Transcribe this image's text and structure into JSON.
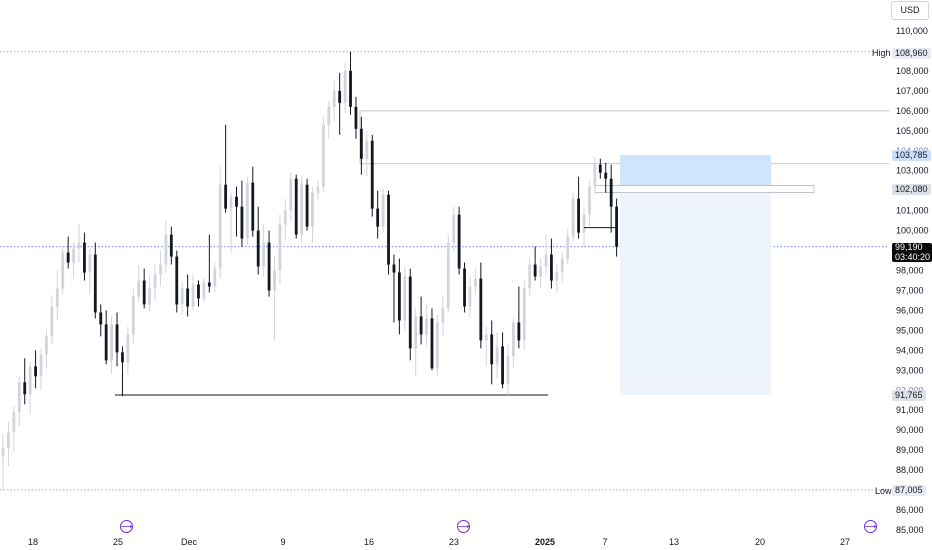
{
  "currency": "USD",
  "chart_data": {
    "type": "candlestick",
    "symbol_currency": "USD",
    "y_axis": {
      "ticks": [
        85000,
        86000,
        87000,
        88000,
        89000,
        90000,
        91000,
        92000,
        93000,
        94000,
        95000,
        96000,
        97000,
        98000,
        99000,
        100000,
        101000,
        102000,
        103000,
        104000,
        105000,
        106000,
        107000,
        108000,
        109000,
        110000
      ],
      "tick_labels": [
        "85,000",
        "86,000",
        "87,000",
        "88,000",
        "89,000",
        "90,000",
        "91,000",
        "92,000",
        "93,000",
        "94,000",
        "95,000",
        "96,000",
        "97,000",
        "98,000",
        "99,000",
        "100,000",
        "101,000",
        "102,000",
        "103,000",
        "104,000",
        "105,000",
        "106,000",
        "107,000",
        "108,000",
        "109,000",
        "110,000"
      ],
      "range": [
        85000,
        110000
      ]
    },
    "x_axis": {
      "tick_labels": [
        "18",
        "25",
        "Dec",
        "9",
        "16",
        "23",
        "2025",
        "7",
        "13",
        "20",
        "27"
      ],
      "bold_labels": [
        "2025"
      ]
    },
    "high": {
      "label": "High",
      "value": 108960,
      "display": "108,960"
    },
    "low": {
      "label": "Low",
      "value": 87005,
      "display": "87,005"
    },
    "current_price": {
      "value": 99190,
      "display": "99,190",
      "countdown": "03:40:20"
    },
    "price_tags": [
      {
        "value": 103785,
        "display": "103,785",
        "style": "blue"
      },
      {
        "value": 102080,
        "display": "102,080",
        "style": "gray"
      },
      {
        "value": 91765,
        "display": "91,765",
        "style": "gray"
      }
    ],
    "horizontal_levels": [
      {
        "name": "support",
        "value": 91765
      },
      {
        "name": "resistance-upper",
        "value": 106000
      },
      {
        "name": "resistance-lower",
        "value": 103350
      }
    ],
    "position_tool": {
      "entry": 102080,
      "target": 103785,
      "stop": 91765,
      "profit_color": "#cfe5fb",
      "loss_color": "#eef4fc"
    },
    "candles": [
      [
        88700,
        89800,
        87005,
        89100
      ],
      [
        89100,
        90400,
        88200,
        89900
      ],
      [
        89900,
        91200,
        88900,
        90900
      ],
      [
        90900,
        92700,
        90200,
        92400
      ],
      [
        92400,
        93600,
        91300,
        91800
      ],
      [
        91800,
        93400,
        90800,
        93200
      ],
      [
        93200,
        94000,
        92100,
        92700
      ],
      [
        92700,
        94100,
        92000,
        93800
      ],
      [
        93800,
        95000,
        93100,
        94700
      ],
      [
        94700,
        96700,
        94300,
        96200
      ],
      [
        96200,
        98000,
        95500,
        97100
      ],
      [
        97100,
        99200,
        96800,
        98900
      ],
      [
        98900,
        99700,
        98100,
        98400
      ],
      [
        98400,
        99400,
        97600,
        99100
      ],
      [
        99100,
        100300,
        98400,
        99400
      ],
      [
        99400,
        99900,
        97500,
        97900
      ],
      [
        97900,
        99100,
        96800,
        98800
      ],
      [
        98800,
        99400,
        95600,
        95900
      ],
      [
        95900,
        96300,
        94700,
        95300
      ],
      [
        95300,
        96000,
        93300,
        93500
      ],
      [
        93500,
        95700,
        92800,
        95300
      ],
      [
        95300,
        95900,
        93200,
        93900
      ],
      [
        93900,
        94200,
        91700,
        93400
      ],
      [
        93400,
        95200,
        92800,
        94800
      ],
      [
        94800,
        97100,
        94300,
        96700
      ],
      [
        96700,
        98300,
        96400,
        97500
      ],
      [
        97500,
        98100,
        96100,
        96300
      ],
      [
        96300,
        97700,
        95900,
        97100
      ],
      [
        97100,
        98300,
        96500,
        97800
      ],
      [
        97800,
        99000,
        97200,
        98300
      ],
      [
        98300,
        100500,
        97900,
        99800
      ],
      [
        99800,
        100200,
        98300,
        98700
      ],
      [
        98700,
        99000,
        95900,
        96300
      ],
      [
        96300,
        97400,
        95800,
        97100
      ],
      [
        97100,
        97800,
        95700,
        96200
      ],
      [
        96200,
        97800,
        96000,
        97300
      ],
      [
        97300,
        97500,
        96200,
        96600
      ],
      [
        96600,
        97600,
        96400,
        97400
      ],
      [
        97400,
        99800,
        96900,
        97200
      ],
      [
        97200,
        98400,
        96900,
        98100
      ],
      [
        98100,
        103200,
        97600,
        102300
      ],
      [
        102300,
        105300,
        100900,
        101100
      ],
      [
        101100,
        101900,
        98900,
        101700
      ],
      [
        101700,
        102200,
        99700,
        101200
      ],
      [
        101200,
        102500,
        99200,
        99600
      ],
      [
        99600,
        102700,
        99300,
        102400
      ],
      [
        102400,
        103200,
        99700,
        100000
      ],
      [
        100000,
        101200,
        97800,
        98200
      ],
      [
        98200,
        100300,
        97700,
        99400
      ],
      [
        99400,
        100000,
        96700,
        97000
      ],
      [
        97000,
        98700,
        94500,
        98000
      ],
      [
        98000,
        100800,
        97300,
        100300
      ],
      [
        100300,
        101600,
        99500,
        101000
      ],
      [
        101000,
        102900,
        100500,
        102600
      ],
      [
        102600,
        102800,
        99600,
        99800
      ],
      [
        99800,
        102700,
        99400,
        102300
      ],
      [
        102300,
        102600,
        100000,
        100200
      ],
      [
        100200,
        102200,
        99400,
        101900
      ],
      [
        101900,
        102500,
        101500,
        102200
      ],
      [
        102200,
        105700,
        101900,
        105300
      ],
      [
        105300,
        106500,
        104600,
        106200
      ],
      [
        106200,
        107500,
        105500,
        107000
      ],
      [
        107000,
        107900,
        104800,
        106400
      ],
      [
        106400,
        108400,
        105900,
        108000
      ],
      [
        108000,
        108960,
        105800,
        106200
      ],
      [
        106200,
        106700,
        104600,
        105100
      ],
      [
        105100,
        105700,
        102800,
        103600
      ],
      [
        103600,
        105000,
        102700,
        104500
      ],
      [
        104500,
        104800,
        100700,
        101100
      ],
      [
        101100,
        102000,
        99600,
        100200
      ],
      [
        100200,
        102100,
        99900,
        101800
      ],
      [
        101800,
        102000,
        97800,
        98300
      ],
      [
        98300,
        98800,
        95400,
        97900
      ],
      [
        97900,
        98600,
        94800,
        95500
      ],
      [
        95500,
        98200,
        95000,
        97700
      ],
      [
        97700,
        98100,
        93500,
        94100
      ],
      [
        94100,
        96100,
        92700,
        95700
      ],
      [
        95700,
        96700,
        94300,
        94800
      ],
      [
        94800,
        96300,
        94200,
        95600
      ],
      [
        95600,
        96100,
        93000,
        93100
      ],
      [
        93100,
        95800,
        92700,
        95400
      ],
      [
        95400,
        96700,
        94700,
        96100
      ],
      [
        96100,
        99800,
        95900,
        99400
      ],
      [
        99400,
        101200,
        98900,
        100800
      ],
      [
        100800,
        101200,
        97800,
        98100
      ],
      [
        98100,
        98400,
        95900,
        96200
      ],
      [
        96200,
        97700,
        95700,
        97200
      ],
      [
        97200,
        98100,
        96800,
        97600
      ],
      [
        97600,
        98400,
        94100,
        94500
      ],
      [
        94500,
        95200,
        93200,
        94800
      ],
      [
        94800,
        95500,
        92300,
        93300
      ],
      [
        93300,
        94900,
        92600,
        94200
      ],
      [
        94200,
        94900,
        92100,
        92300
      ],
      [
        92300,
        94300,
        91765,
        93700
      ],
      [
        93700,
        95600,
        93100,
        95400
      ],
      [
        95400,
        97200,
        94100,
        94500
      ],
      [
        94500,
        97500,
        94000,
        97100
      ],
      [
        97100,
        98600,
        96700,
        98300
      ],
      [
        98300,
        99200,
        97500,
        97700
      ],
      [
        97700,
        98600,
        97100,
        98200
      ],
      [
        98200,
        99800,
        97800,
        98800
      ],
      [
        98800,
        99600,
        97100,
        97500
      ],
      [
        97500,
        98300,
        96900,
        97900
      ],
      [
        97900,
        98900,
        97400,
        98600
      ],
      [
        98600,
        100100,
        98300,
        99700
      ],
      [
        99700,
        101900,
        99500,
        101600
      ],
      [
        101600,
        102700,
        99600,
        99900
      ],
      [
        99900,
        101200,
        99200,
        100800
      ],
      [
        100800,
        102500,
        100200,
        102200
      ],
      [
        102200,
        103700,
        101800,
        103300
      ],
      [
        103300,
        103600,
        102600,
        102900
      ],
      [
        102900,
        103400,
        101900,
        102600
      ],
      [
        102600,
        103300,
        99900,
        101200
      ],
      [
        101200,
        101600,
        98700,
        99190
      ]
    ]
  }
}
